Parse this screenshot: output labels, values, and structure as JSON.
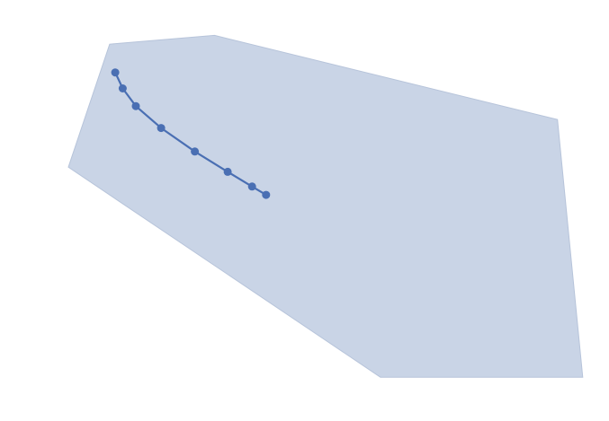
{
  "chart_data": {
    "type": "line",
    "title": "",
    "xlabel": "",
    "ylabel": "",
    "axes_visible": false,
    "grid": false,
    "legend": "none",
    "colors": {
      "region_fill": "#c9d4e6",
      "region_stroke": "#b7c4da",
      "series": "#4a6fb3"
    },
    "region": {
      "vertices": [
        [
          11.7,
          89.5
        ],
        [
          22.9,
          91.6
        ],
        [
          59.5,
          71.6
        ],
        [
          62.2,
          10.4
        ],
        [
          40.6,
          10.4
        ],
        [
          7.3,
          60.3
        ]
      ]
    },
    "series": [
      {
        "x": [
          12.3,
          13.1,
          14.5,
          17.2,
          20.8,
          24.3,
          26.9,
          28.4
        ],
        "y": [
          82.8,
          79.0,
          74.8,
          69.6,
          64.0,
          59.2,
          55.7,
          53.7
        ]
      }
    ],
    "xlim": [
      0,
      65
    ],
    "ylim": [
      0,
      100
    ]
  }
}
